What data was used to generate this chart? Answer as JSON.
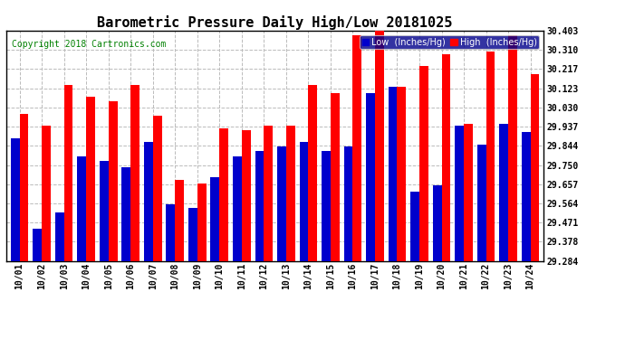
{
  "title": "Barometric Pressure Daily High/Low 20181025",
  "copyright": "Copyright 2018 Cartronics.com",
  "legend_low": "Low  (Inches/Hg)",
  "legend_high": "High  (Inches/Hg)",
  "dates": [
    "10/01",
    "10/02",
    "10/03",
    "10/04",
    "10/05",
    "10/06",
    "10/07",
    "10/08",
    "10/09",
    "10/10",
    "10/11",
    "10/12",
    "10/13",
    "10/14",
    "10/15",
    "10/16",
    "10/17",
    "10/18",
    "10/19",
    "10/20",
    "10/21",
    "10/22",
    "10/23",
    "10/24"
  ],
  "low": [
    29.88,
    29.44,
    29.52,
    29.79,
    29.77,
    29.74,
    29.86,
    29.56,
    29.54,
    29.69,
    29.79,
    29.82,
    29.84,
    29.86,
    29.82,
    29.84,
    30.1,
    30.13,
    29.62,
    29.65,
    29.94,
    29.85,
    29.95,
    29.91
  ],
  "high": [
    30.0,
    29.94,
    30.14,
    30.08,
    30.06,
    30.14,
    29.99,
    29.68,
    29.66,
    29.93,
    29.92,
    29.94,
    29.94,
    30.14,
    30.1,
    30.38,
    30.4,
    30.13,
    30.23,
    30.29,
    29.95,
    30.3,
    30.38,
    30.19
  ],
  "ylim_min": 29.284,
  "ylim_max": 30.403,
  "yticks": [
    29.284,
    29.378,
    29.471,
    29.564,
    29.657,
    29.75,
    29.844,
    29.937,
    30.03,
    30.123,
    30.217,
    30.31,
    30.403
  ],
  "bar_width": 0.4,
  "low_color": "#0000cc",
  "high_color": "#ff0000",
  "bg_color": "#ffffff",
  "grid_color": "#bbbbbb",
  "title_fontsize": 11,
  "copyright_fontsize": 7,
  "tick_fontsize": 7,
  "legend_fontsize": 7
}
